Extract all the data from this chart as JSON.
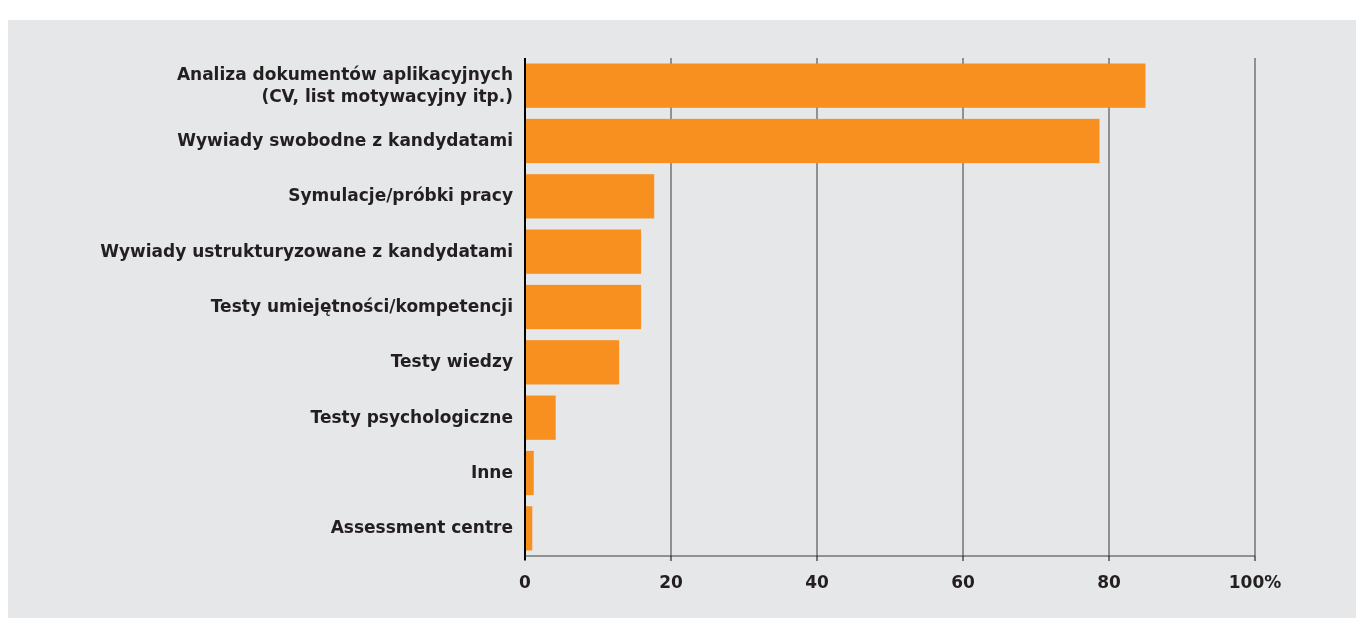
{
  "chart_data": {
    "type": "bar",
    "orientation": "horizontal",
    "categories": [
      "Analiza dokumentów aplikacyjnych\n(CV, list motywacyjny itp.)",
      "Wywiady swobodne z kandydatami",
      "Symulacje/próbki pracy",
      "Wywiady ustrukturyzowane z kandydatami",
      "Testy umiejętności/kompetencji",
      "Testy wiedzy",
      "Testy psychologiczne",
      "Inne",
      "Assessment centre"
    ],
    "values": [
      85,
      78.7,
      17.7,
      15.9,
      15.9,
      12.9,
      4.2,
      1.2,
      1
    ],
    "color": "#f7901e",
    "xlim": [
      0,
      100
    ],
    "xticks": [
      0,
      20,
      40,
      60,
      80,
      {
        "value": 100,
        "label": "100%"
      }
    ],
    "grid": "x"
  }
}
